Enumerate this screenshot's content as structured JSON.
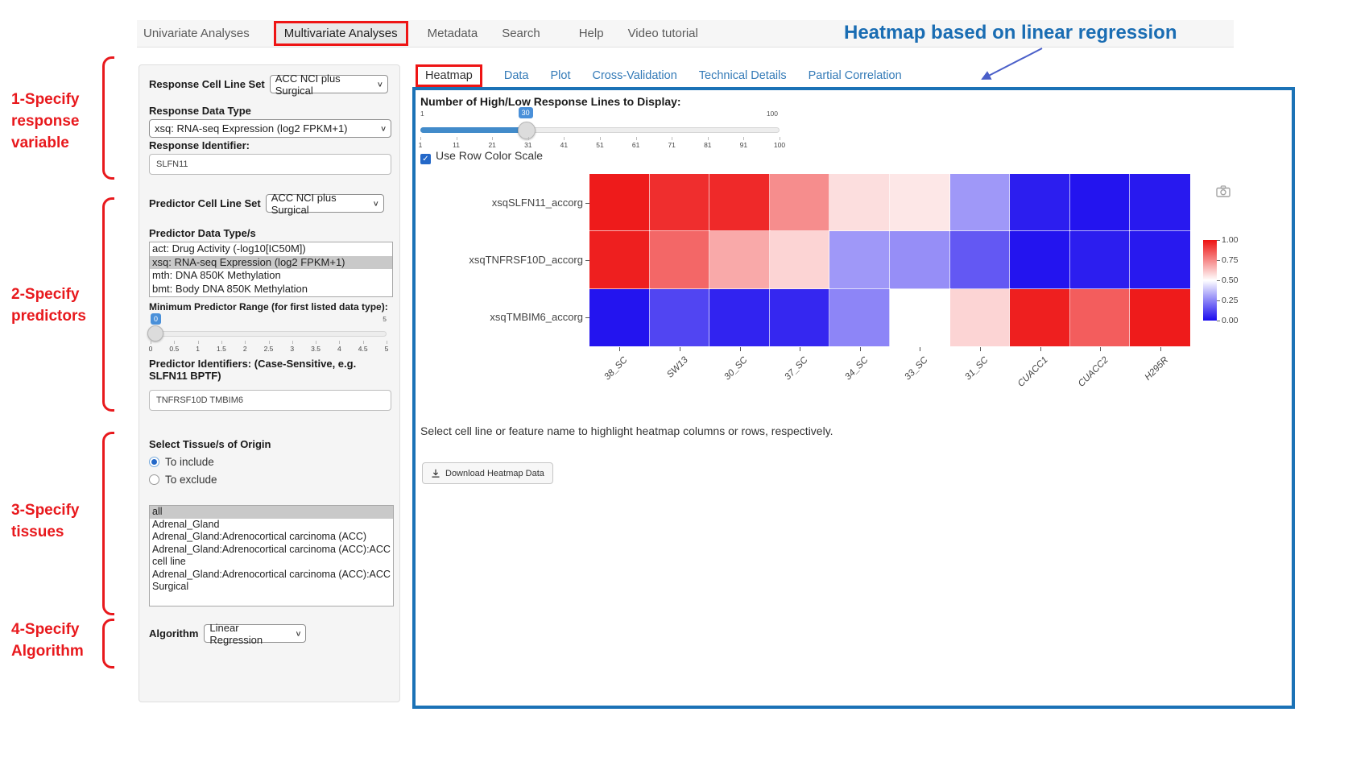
{
  "nav": {
    "items": [
      "Univariate Analyses",
      "Multivariate Analyses",
      "Metadata",
      "Search",
      "Help",
      "Video tutorial"
    ],
    "active": "Multivariate Analyses"
  },
  "annotations": {
    "title": "Heatmap based on linear regression",
    "steps": [
      {
        "lines": [
          "1-Specify",
          "response",
          "variable"
        ]
      },
      {
        "lines": [
          "2-Specify",
          "predictors"
        ]
      },
      {
        "lines": [
          "3-Specify",
          "tissues"
        ]
      },
      {
        "lines": [
          "4-Specify",
          "Algorithm"
        ]
      }
    ]
  },
  "sidebar": {
    "response_cell_line_set": {
      "label": "Response Cell Line Set",
      "value": "ACC NCI plus Surgical"
    },
    "response_data_type": {
      "label": "Response Data Type",
      "value": "xsq: RNA-seq Expression (log2 FPKM+1)"
    },
    "response_identifier": {
      "label": "Response Identifier:",
      "value": "SLFN11"
    },
    "predictor_cell_line_set": {
      "label": "Predictor Cell Line Set",
      "value": "ACC NCI plus Surgical"
    },
    "predictor_data_types": {
      "label": "Predictor Data Type/s",
      "options": [
        "act: Drug Activity (-log10[IC50M])",
        "xsq: RNA-seq Expression (log2 FPKM+1)",
        "mth: DNA 850K Methylation",
        "bmt: Body DNA 850K Methylation"
      ],
      "selected": "xsq: RNA-seq Expression (log2 FPKM+1)"
    },
    "min_predictor_range": {
      "label": "Minimum Predictor Range (for first listed data type):",
      "value": "0",
      "max_label": "5",
      "ticks": [
        "0",
        "0.5",
        "1",
        "1.5",
        "2",
        "2.5",
        "3",
        "3.5",
        "4",
        "4.5",
        "5"
      ]
    },
    "predictor_identifiers": {
      "label": "Predictor Identifiers: (Case-Sensitive, e.g. SLFN11 BPTF)",
      "value": "TNFRSF10D TMBIM6"
    },
    "tissue": {
      "label": "Select Tissue/s of Origin",
      "radios": [
        {
          "label": "To include",
          "checked": true
        },
        {
          "label": "To exclude",
          "checked": false
        }
      ],
      "options": [
        "all",
        "Adrenal_Gland",
        "Adrenal_Gland:Adrenocortical carcinoma (ACC)",
        "Adrenal_Gland:Adrenocortical carcinoma (ACC):ACC cell line",
        "Adrenal_Gland:Adrenocortical carcinoma (ACC):ACC Surgical"
      ],
      "selected": "all"
    },
    "algorithm": {
      "label": "Algorithm",
      "value": "Linear Regression"
    }
  },
  "main": {
    "tabs": [
      "Heatmap",
      "Data",
      "Plot",
      "Cross-Validation",
      "Technical Details",
      "Partial Correlation"
    ],
    "active_tab": "Heatmap",
    "slider": {
      "label": "Number of High/Low Response Lines to Display:",
      "value": "30",
      "min_label": "1",
      "max_label": "100",
      "ticks": [
        "1",
        "11",
        "21",
        "31",
        "41",
        "51",
        "61",
        "71",
        "81",
        "91",
        "100"
      ]
    },
    "row_color_scale": {
      "label": "Use Row Color Scale",
      "checked": true
    },
    "hint": "Select cell line or feature name to highlight heatmap columns or rows, respectively.",
    "download_button": "Download Heatmap Data",
    "icons": {
      "camera": "camera-icon",
      "download": "download-icon"
    }
  },
  "chart_data": {
    "type": "heatmap",
    "rows": [
      "xsqSLFN11_accorg",
      "xsqTNFRSF10D_accorg",
      "xsqTMBIM6_accorg"
    ],
    "columns": [
      "38_SC",
      "SW13",
      "30_SC",
      "37_SC",
      "34_SC",
      "33_SC",
      "31_SC",
      "CUACC1",
      "CUACC2",
      "H295R"
    ],
    "values": [
      [
        0.98,
        0.94,
        0.95,
        0.74,
        0.57,
        0.55,
        0.29,
        0.04,
        0.02,
        0.03
      ],
      [
        0.97,
        0.82,
        0.68,
        0.59,
        0.29,
        0.27,
        0.16,
        0.02,
        0.04,
        0.03
      ],
      [
        0.02,
        0.12,
        0.05,
        0.06,
        0.25,
        0.5,
        0.59,
        0.97,
        0.84,
        0.98
      ]
    ],
    "colorbar": {
      "ticks": [
        "1.00",
        "0.75",
        "0.50",
        "0.25",
        "0.00"
      ],
      "high_color": "#ed1111",
      "mid_color": "#ffffff",
      "low_color": "#1a0aee"
    },
    "legend_position": "right",
    "title": "",
    "xlabel": "",
    "ylabel": ""
  }
}
